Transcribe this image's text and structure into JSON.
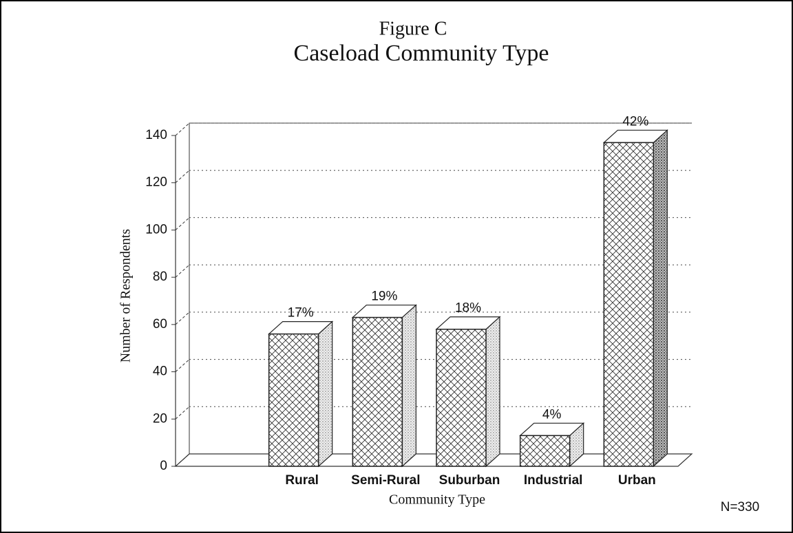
{
  "chart_data": {
    "type": "bar3d",
    "title": "Figure C",
    "subtitle": "Caseload Community Type",
    "x_label": "Community Type",
    "y_label": "Number of Respondents",
    "annotation": "N=330",
    "categories": [
      "Rural",
      "Semi-Rural",
      "Suburban",
      "Industrial",
      "Urban"
    ],
    "values": [
      56,
      63,
      58,
      13,
      137
    ],
    "percent_labels": [
      "17%",
      "19%",
      "18%",
      "4%",
      "42%"
    ],
    "ylim": [
      0,
      140
    ],
    "yticks": [
      0,
      20,
      40,
      60,
      80,
      100,
      120,
      140
    ],
    "grid": true,
    "color": "#ffffff"
  }
}
